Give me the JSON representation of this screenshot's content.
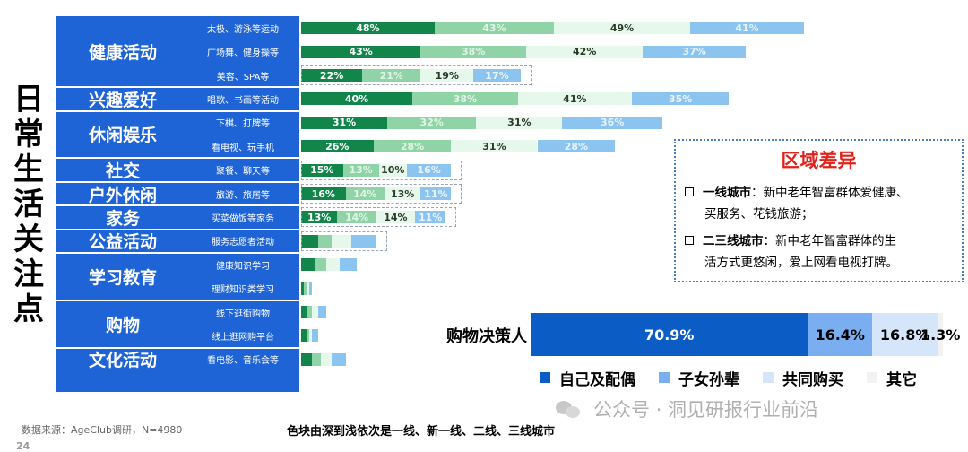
{
  "title_vertical": "日常生活关注点",
  "categories": [
    {
      "label": "健康活动",
      "subs": [
        {
          "label": "太极、游泳等运动",
          "values": [
            48,
            43,
            49,
            41
          ]
        },
        {
          "label": "广场舞、健身操等",
          "values": [
            43,
            38,
            42,
            37
          ]
        },
        {
          "label": "美容、SPA等",
          "values": [
            22,
            21,
            19,
            17
          ]
        }
      ]
    },
    {
      "label": "兴趣爱好",
      "subs": [
        {
          "label": "唱歌、书画等活动",
          "values": [
            40,
            38,
            41,
            35
          ]
        }
      ]
    },
    {
      "label": "休闲娱乐",
      "subs": [
        {
          "label": "下棋、打牌等",
          "values": [
            31,
            32,
            31,
            36
          ]
        },
        {
          "label": "看电视、玩手机",
          "values": [
            26,
            28,
            31,
            28
          ]
        }
      ]
    },
    {
      "label": "社交",
      "subs": [
        {
          "label": "聚餐、聊天等",
          "values": [
            15,
            13,
            10,
            16
          ]
        }
      ]
    },
    {
      "label": "户外休闲",
      "subs": [
        {
          "label": "旅游、旅居等",
          "values": [
            16,
            14,
            13,
            11
          ]
        }
      ]
    },
    {
      "label": "家务",
      "subs": [
        {
          "label": "买菜做饭等家务",
          "values": [
            13,
            14,
            14,
            11
          ]
        }
      ]
    },
    {
      "label": "公益活动",
      "subs": [
        {
          "label": "服务志愿者活动",
          "values": [
            6,
            5,
            7,
            9
          ]
        }
      ]
    },
    {
      "label": "学习教育",
      "subs": [
        {
          "label": "健康知识学习",
          "values": [
            5,
            4,
            5,
            6
          ]
        },
        {
          "label": "理财知识类学习",
          "values": [
            1,
            1,
            1,
            1
          ]
        }
      ]
    },
    {
      "label": "购物",
      "subs": [
        {
          "label": "线下逛街购物",
          "values": [
            2,
            2,
            2,
            3
          ]
        },
        {
          "label": "线上逛网购平台",
          "values": [
            2,
            1,
            1,
            2
          ]
        }
      ]
    },
    {
      "label": "文化活动",
      "subs": [
        {
          "label": "看电影、音乐会等",
          "values": [
            4,
            3,
            4,
            5
          ]
        }
      ]
    }
  ],
  "segment_colors": [
    "#12864a",
    "#8fd3a6",
    "#e6f8ec",
    "#8cc4f0"
  ],
  "region": {
    "title": "区域差异",
    "items": [
      {
        "city": "一线城市",
        "text": "：新中老年智富群体爱健康、",
        "cont": "买服务、花钱旅游；"
      },
      {
        "city": "二三线城市",
        "text": "：新中老年智富群体的生",
        "cont": "活方式更悠闲，爱上网看电视打牌。"
      }
    ]
  },
  "decision_maker": {
    "label": "购物决策人",
    "segments": [
      {
        "name": "自己及配偶",
        "value": 70.9,
        "text": "70.9%",
        "color": "#0c5cc6",
        "text_color": "#ffffff"
      },
      {
        "name": "子女孙辈",
        "value": 16.4,
        "text": "16.4%",
        "color": "#7aaef0",
        "text_color": "#000000"
      },
      {
        "name": "共同购买",
        "value": 16.8,
        "text": "16.8%",
        "color": "#d6e6fa",
        "text_color": "#000000"
      },
      {
        "name": "其它",
        "value": 1.3,
        "text": "1.3%",
        "color": "#f2f2f2",
        "text_color": "#000000"
      }
    ]
  },
  "source": "数据来源：AgeClub调研，N=4980",
  "footnote": "色块由深到浅依次是一线、新一线、二线、三线城市",
  "watermark": "公众号 · 洞见研报行业前沿",
  "page_number": "24",
  "chart_data": [
    {
      "type": "bar",
      "orientation": "horizontal-stacked",
      "title": "日常生活关注点",
      "categories": [
        "太极、游泳等运动",
        "广场舞、健身操等",
        "美容、SPA等",
        "唱歌、书画等活动",
        "下棋、打牌等",
        "看电视、玩手机",
        "聚餐、聊天等",
        "旅游、旅居等",
        "买菜做饭等家务",
        "服务志愿者活动",
        "健康知识学习",
        "理财知识类学习",
        "线下逛街购物",
        "线上逛网购平台",
        "看电影、音乐会等"
      ],
      "series": [
        {
          "values": [
            48,
            43,
            22,
            40,
            31,
            26,
            15,
            16,
            13,
            6,
            5,
            1,
            2,
            2,
            4
          ]
        },
        {
          "values": [
            43,
            38,
            21,
            38,
            32,
            28,
            13,
            14,
            14,
            5,
            4,
            1,
            2,
            1,
            3
          ]
        },
        {
          "values": [
            49,
            42,
            19,
            41,
            31,
            31,
            10,
            13,
            14,
            7,
            5,
            1,
            2,
            1,
            4
          ]
        },
        {
          "values": [
            41,
            37,
            17,
            35,
            36,
            28,
            16,
            11,
            11,
            9,
            6,
            1,
            3,
            2,
            5
          ]
        }
      ],
      "annotation": "色块由深到浅依次是一线、新一线、二线、三线城市"
    },
    {
      "type": "bar",
      "orientation": "horizontal-stacked",
      "categories": [
        "购物决策人"
      ],
      "series": [
        {
          "name": "自己及配偶",
          "values": [
            70.9
          ]
        },
        {
          "name": "子女孙辈",
          "values": [
            16.4
          ]
        },
        {
          "name": "共同购买",
          "values": [
            16.8
          ]
        },
        {
          "name": "其它",
          "values": [
            1.3
          ]
        }
      ],
      "legend": "bottom"
    }
  ]
}
